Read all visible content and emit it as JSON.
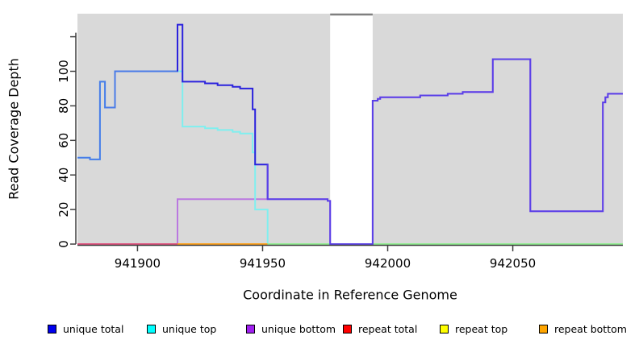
{
  "figure": {
    "title": "",
    "xlabel": "Coordinate in Reference Genome",
    "ylabel": "Read Coverage Depth"
  },
  "chart_data": {
    "type": "line",
    "subtype": "step",
    "title": "",
    "xlabel": "Coordinate in Reference Genome",
    "ylabel": "Read Coverage Depth",
    "xlim": [
      941876,
      942094
    ],
    "ylim": [
      0,
      133
    ],
    "xticks": [
      941900,
      941950,
      942000,
      942050
    ],
    "xtick_labels": [
      "941900",
      "941950",
      "942000",
      "942050"
    ],
    "yticks": [
      0,
      20,
      40,
      60,
      80,
      100,
      120
    ],
    "ytick_labels": [
      "0",
      "20",
      "40",
      "60",
      "80",
      "100",
      ""
    ],
    "grid": false,
    "plot_bg": "#d9d9d9",
    "gap_region": {
      "start": 941977,
      "end": 941994,
      "fill": "#ffffff",
      "top_border": "#7f7f7f"
    },
    "series": [
      {
        "name": "unique total",
        "legend_color": "#0000EE",
        "steps": [
          [
            941876,
            50
          ],
          [
            941881,
            49
          ],
          [
            941885,
            94
          ],
          [
            941887,
            79
          ],
          [
            941891,
            100
          ],
          [
            941916,
            127
          ],
          [
            941918,
            94
          ],
          [
            941927,
            93
          ],
          [
            941932,
            92
          ],
          [
            941938,
            91
          ],
          [
            941941,
            90
          ],
          [
            941946,
            78
          ],
          [
            941947,
            46
          ],
          [
            941952,
            26
          ],
          [
            941976,
            25
          ],
          [
            941977,
            0
          ],
          [
            941994,
            83
          ],
          [
            941996,
            84
          ],
          [
            941997,
            85
          ],
          [
            942013,
            86
          ],
          [
            942024,
            87
          ],
          [
            942030,
            88
          ],
          [
            942042,
            107
          ],
          [
            942057,
            19
          ],
          [
            942086,
            82
          ],
          [
            942087,
            85
          ],
          [
            942088,
            87
          ],
          [
            942094,
            87
          ]
        ],
        "render_segments": [
          {
            "from": 941876,
            "to": 941916,
            "color": "#4A7CE8"
          },
          {
            "from": 941916,
            "to": 941952,
            "color": "#2B22DD"
          },
          {
            "from": 941952,
            "to": 942094,
            "color": "#5A40E8"
          }
        ]
      },
      {
        "name": "unique top",
        "legend_color": "#00FFFF",
        "draw_color": "#7FEFEF",
        "steps": [
          [
            941876,
            50
          ],
          [
            941881,
            49
          ],
          [
            941885,
            94
          ],
          [
            941887,
            79
          ],
          [
            941891,
            100
          ],
          [
            941918,
            68
          ],
          [
            941927,
            67
          ],
          [
            941932,
            66
          ],
          [
            941938,
            65
          ],
          [
            941941,
            64
          ],
          [
            941946,
            53
          ],
          [
            941947,
            20
          ],
          [
            941952,
            0
          ],
          [
            942094,
            0
          ]
        ]
      },
      {
        "name": "unique bottom",
        "legend_color": "#A020F0",
        "draw_color": "#BA78E0",
        "steps": [
          [
            941876,
            0
          ],
          [
            941916,
            26
          ],
          [
            941976,
            25
          ],
          [
            941977,
            0
          ],
          [
            941994,
            83
          ],
          [
            941996,
            84
          ],
          [
            941997,
            85
          ],
          [
            942013,
            86
          ],
          [
            942024,
            87
          ],
          [
            942030,
            88
          ],
          [
            942042,
            107
          ],
          [
            942057,
            19
          ],
          [
            942086,
            82
          ],
          [
            942087,
            85
          ],
          [
            942088,
            87
          ],
          [
            942094,
            87
          ]
        ]
      },
      {
        "name": "repeat total",
        "legend_color": "#FF0000",
        "draw_color": "#E0517E",
        "steps": [
          [
            941876,
            0
          ],
          [
            942094,
            0
          ]
        ]
      },
      {
        "name": "repeat top",
        "legend_color": "#FFFF00",
        "draw_color": "#FFFF00",
        "steps": [
          [
            941876,
            0
          ],
          [
            942094,
            0
          ]
        ]
      },
      {
        "name": "repeat bottom",
        "legend_color": "#FFA500",
        "draw_color": "#FFA018",
        "steps": [
          [
            941876,
            0
          ],
          [
            942094,
            0
          ]
        ]
      }
    ],
    "baseline_render": [
      {
        "from": 941876,
        "to": 941916,
        "color": "#E0517E"
      },
      {
        "from": 941916,
        "to": 941952,
        "color": "#FFA018"
      },
      {
        "from": 941952,
        "to": 941977,
        "color": "#90EE90"
      },
      {
        "from": 941994,
        "to": 942094,
        "color": "#90EE90"
      }
    ],
    "legend": [
      {
        "label": "unique total",
        "color": "#0000EE"
      },
      {
        "label": "unique top",
        "color": "#00FFFF"
      },
      {
        "label": "unique bottom",
        "color": "#A020F0"
      },
      {
        "label": "repeat total",
        "color": "#FF0000"
      },
      {
        "label": "repeat top",
        "color": "#FFFF00"
      },
      {
        "label": "repeat bottom",
        "color": "#FFA500"
      }
    ]
  }
}
